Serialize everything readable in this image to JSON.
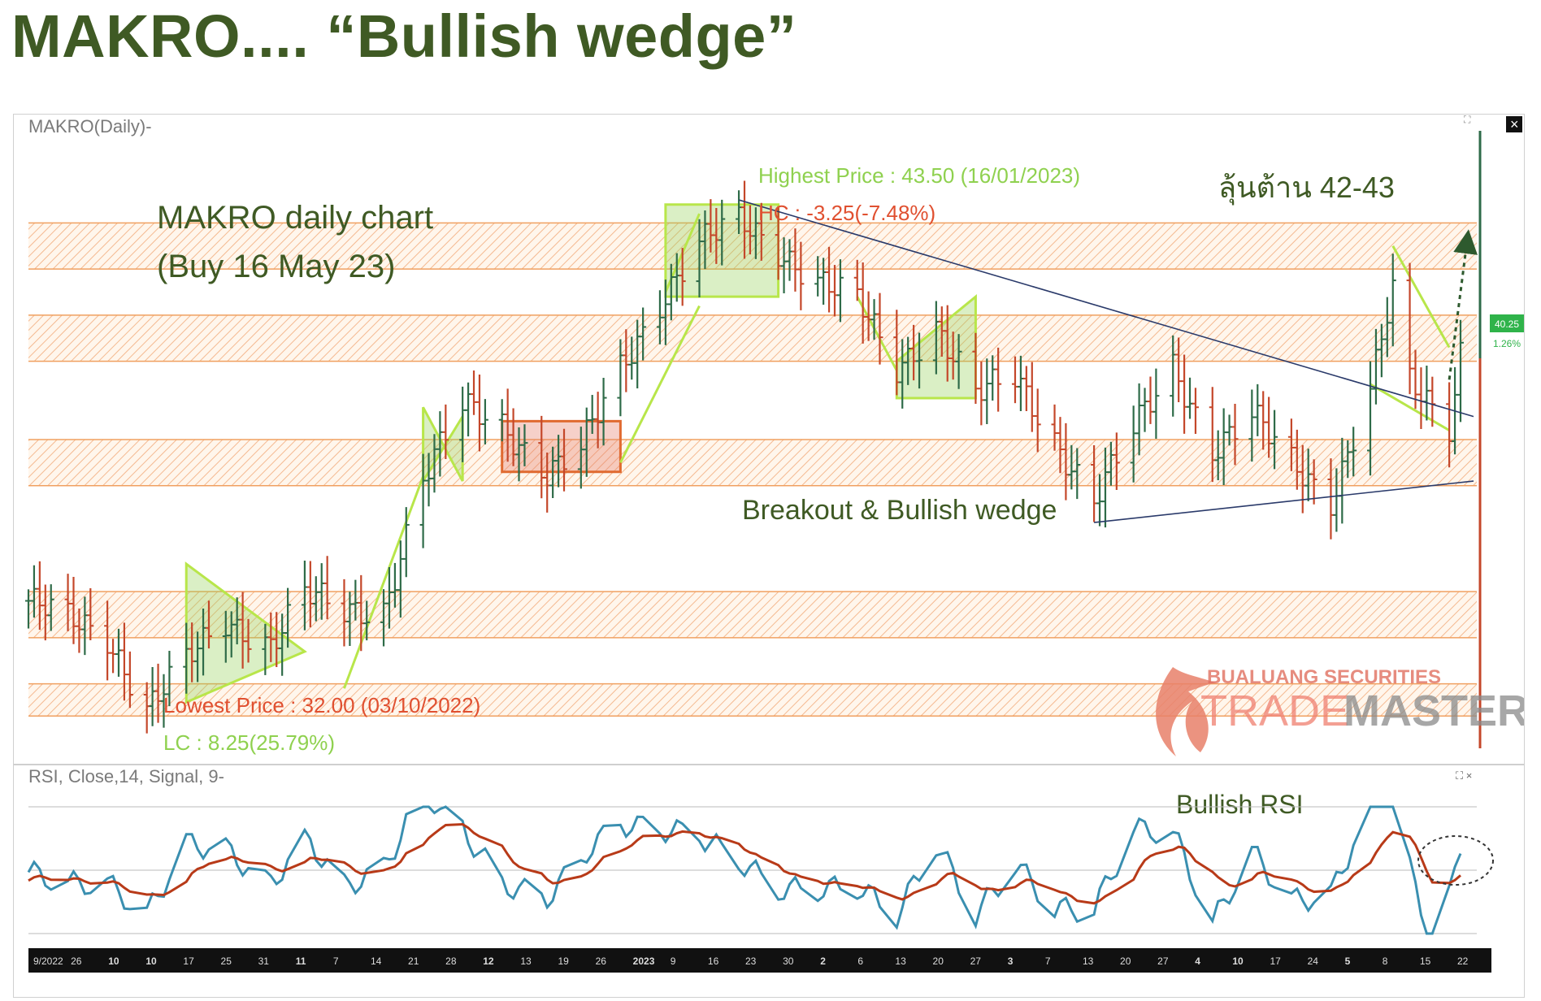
{
  "slide": {
    "title": "MAKRO.... “Bullish wedge”"
  },
  "chart_panel": {
    "header": "MAKRO(Daily)-",
    "note_title": "MAKRO daily chart",
    "note_sub": "(Buy 16 May 23)",
    "resistance_note": "ลุ้นต้าน 42-43",
    "pattern_note": "Breakout & Bullish wedge",
    "highest_price": "Highest Price : 43.50 (16/01/2023)",
    "hc": "HC : -3.25(-7.48%)",
    "lowest_price": "Lowest Price : 32.00 (03/10/2022)",
    "lc": "LC : 8.25(25.79%)",
    "last_price": "40.25",
    "last_change": "1.26%",
    "close_icon": "×"
  },
  "watermark": {
    "company": "BUALUANG SECURITIES",
    "product_a": "TRADE",
    "product_b": "MASTER"
  },
  "rsi_panel": {
    "header": "RSI, Close,14, Signal, 9-",
    "note": "Bullish RSI",
    "controls": "⛶ ×"
  },
  "x_axis": {
    "ticks": [
      "9/2022",
      "26",
      "10",
      "10",
      "17",
      "25",
      "31",
      "11",
      "7",
      "14",
      "21",
      "28",
      "12",
      "13",
      "19",
      "26",
      "2023",
      "9",
      "16",
      "23",
      "30",
      "2",
      "6",
      "13",
      "20",
      "27",
      "3",
      "7",
      "13",
      "20",
      "27",
      "4",
      "10",
      "17",
      "24",
      "5",
      "8",
      "15",
      "22"
    ],
    "bold_ticks": [
      "10",
      "11",
      "12",
      "2023",
      "2",
      "3",
      "4",
      "5"
    ]
  },
  "colors": {
    "title": "#3f5a24",
    "up_bar": "#2e6b48",
    "down_bar": "#c4472a",
    "zone_line": "#f0a060",
    "pattern_line": "#b8e64a",
    "rsi_line": "#3a8fb0",
    "signal_line": "#b83a18",
    "note_green": "#3f5a24",
    "price_green": "#8fd14f",
    "price_red": "#e05030"
  },
  "chart_data": {
    "type": "ohlc",
    "series_name": "MAKRO(Daily)",
    "y_unit": "THB",
    "ylim": [
      31.6,
      45.0
    ],
    "highest": 43.5,
    "lowest": 32.0,
    "last": 40.25,
    "resistance_zones": [
      [
        42.0,
        43.0
      ],
      [
        40.0,
        41.0
      ],
      [
        37.3,
        38.3
      ],
      [
        34.0,
        35.0
      ],
      [
        32.3,
        33.0
      ]
    ],
    "trendlines": [
      {
        "from": [
          "2023-01-16",
          43.5
        ],
        "to": [
          "2023-05-24",
          38.8
        ]
      },
      {
        "from": [
          "2023-03-20",
          36.5
        ],
        "to": [
          "2023-05-24",
          37.4
        ]
      }
    ],
    "close_path": [
      [
        "2022-09-12",
        34.8
      ],
      [
        "2022-09-26",
        34.0
      ],
      [
        "2022-10-03",
        32.5
      ],
      [
        "2022-10-10",
        33.5
      ],
      [
        "2022-10-17",
        34.3
      ],
      [
        "2022-10-25",
        33.9
      ],
      [
        "2022-10-31",
        35.0
      ],
      [
        "2022-11-07",
        34.5
      ],
      [
        "2022-11-14",
        34.6
      ],
      [
        "2022-11-21",
        37.5
      ],
      [
        "2022-11-28",
        39.0
      ],
      [
        "2022-12-05",
        38.6
      ],
      [
        "2022-12-13",
        37.6
      ],
      [
        "2022-12-19",
        38.1
      ],
      [
        "2022-12-26",
        39.8
      ],
      [
        "2023-01-03",
        41.5
      ],
      [
        "2023-01-09",
        42.6
      ],
      [
        "2023-01-16",
        43.0
      ],
      [
        "2023-01-23",
        42.4
      ],
      [
        "2023-01-30",
        41.8
      ],
      [
        "2023-02-06",
        41.3
      ],
      [
        "2023-02-13",
        39.8
      ],
      [
        "2023-02-20",
        40.8
      ],
      [
        "2023-02-27",
        39.3
      ],
      [
        "2023-03-06",
        39.6
      ],
      [
        "2023-03-13",
        38.3
      ],
      [
        "2023-03-20",
        37.0
      ],
      [
        "2023-03-27",
        38.5
      ],
      [
        "2023-04-03",
        39.9
      ],
      [
        "2023-04-10",
        38.1
      ],
      [
        "2023-04-17",
        38.8
      ],
      [
        "2023-04-24",
        37.8
      ],
      [
        "2023-05-01",
        37.0
      ],
      [
        "2023-05-08",
        39.4
      ],
      [
        "2023-05-12",
        41.5
      ],
      [
        "2023-05-15",
        39.5
      ],
      [
        "2023-05-22",
        38.6
      ],
      [
        "2023-05-24",
        40.25
      ]
    ]
  }
}
